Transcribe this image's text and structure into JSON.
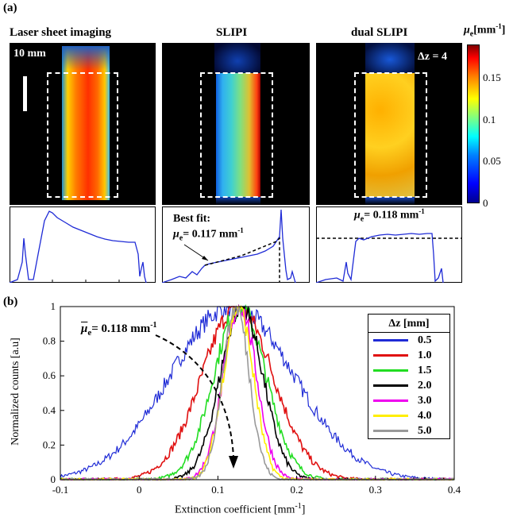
{
  "panel_a": {
    "label": "(a)",
    "images": [
      {
        "title": "Laser sheet imaging",
        "scale_label": "10 mm"
      },
      {
        "title": "SLIPI"
      },
      {
        "title": "dual SLIPI",
        "delta_z_label": "Δz = 4"
      }
    ],
    "colorbar": {
      "label_symbol": "μ",
      "label_sub": "e",
      "label_unit": "[mm",
      "label_exp": "-1",
      "label_end": "]",
      "ticks": [
        "0.15",
        "0.1",
        "0.05",
        "0"
      ],
      "tick_values": [
        0.15,
        0.1,
        0.05,
        0
      ],
      "max": 0.19
    },
    "profiles": {
      "slipi_annotation": {
        "line1": "Best fit:",
        "mu": "μ",
        "sub": "e",
        "value": "= 0.117 mm",
        "exp": "-1"
      },
      "dual_annotation": {
        "mu": "μ",
        "sub": "e",
        "value": "= 0.118 mm",
        "exp": "-1"
      }
    }
  },
  "panel_b": {
    "label": "(b)",
    "annotation": {
      "mu": "μ",
      "sub": "e",
      "value": "= 0.118 mm",
      "exp": "-1"
    }
  },
  "chart_data": {
    "type": "line",
    "xlabel": "Extinction coefficient [mm",
    "xlabel_exp": "-1",
    "xlabel_end": "]",
    "ylabel": "Normalized counts [a.u]",
    "xlim": [
      -0.1,
      0.4
    ],
    "ylim": [
      0,
      1
    ],
    "x_ticks": [
      "-0.1",
      "0",
      "0.1",
      "0.2",
      "0.3",
      "0.4"
    ],
    "y_ticks": [
      "0",
      "0.2",
      "0.4",
      "0.6",
      "0.8",
      "1"
    ],
    "legend_title": "Δz [mm]",
    "legend_position": "top-right",
    "series": [
      {
        "name": "0.5",
        "color": "#1f2bd6",
        "center": 0.118,
        "sigma": 0.078
      },
      {
        "name": "1.0",
        "color": "#e01010",
        "center": 0.125,
        "sigma": 0.045
      },
      {
        "name": "1.5",
        "color": "#22dd22",
        "center": 0.128,
        "sigma": 0.033
      },
      {
        "name": "2.0",
        "color": "#000000",
        "center": 0.13,
        "sigma": 0.027
      },
      {
        "name": "3.0",
        "color": "#ee00ee",
        "center": 0.128,
        "sigma": 0.021
      },
      {
        "name": "4.0",
        "color": "#ffee00",
        "center": 0.126,
        "sigma": 0.019
      },
      {
        "name": "5.0",
        "color": "#999999",
        "center": 0.123,
        "sigma": 0.017
      }
    ]
  }
}
